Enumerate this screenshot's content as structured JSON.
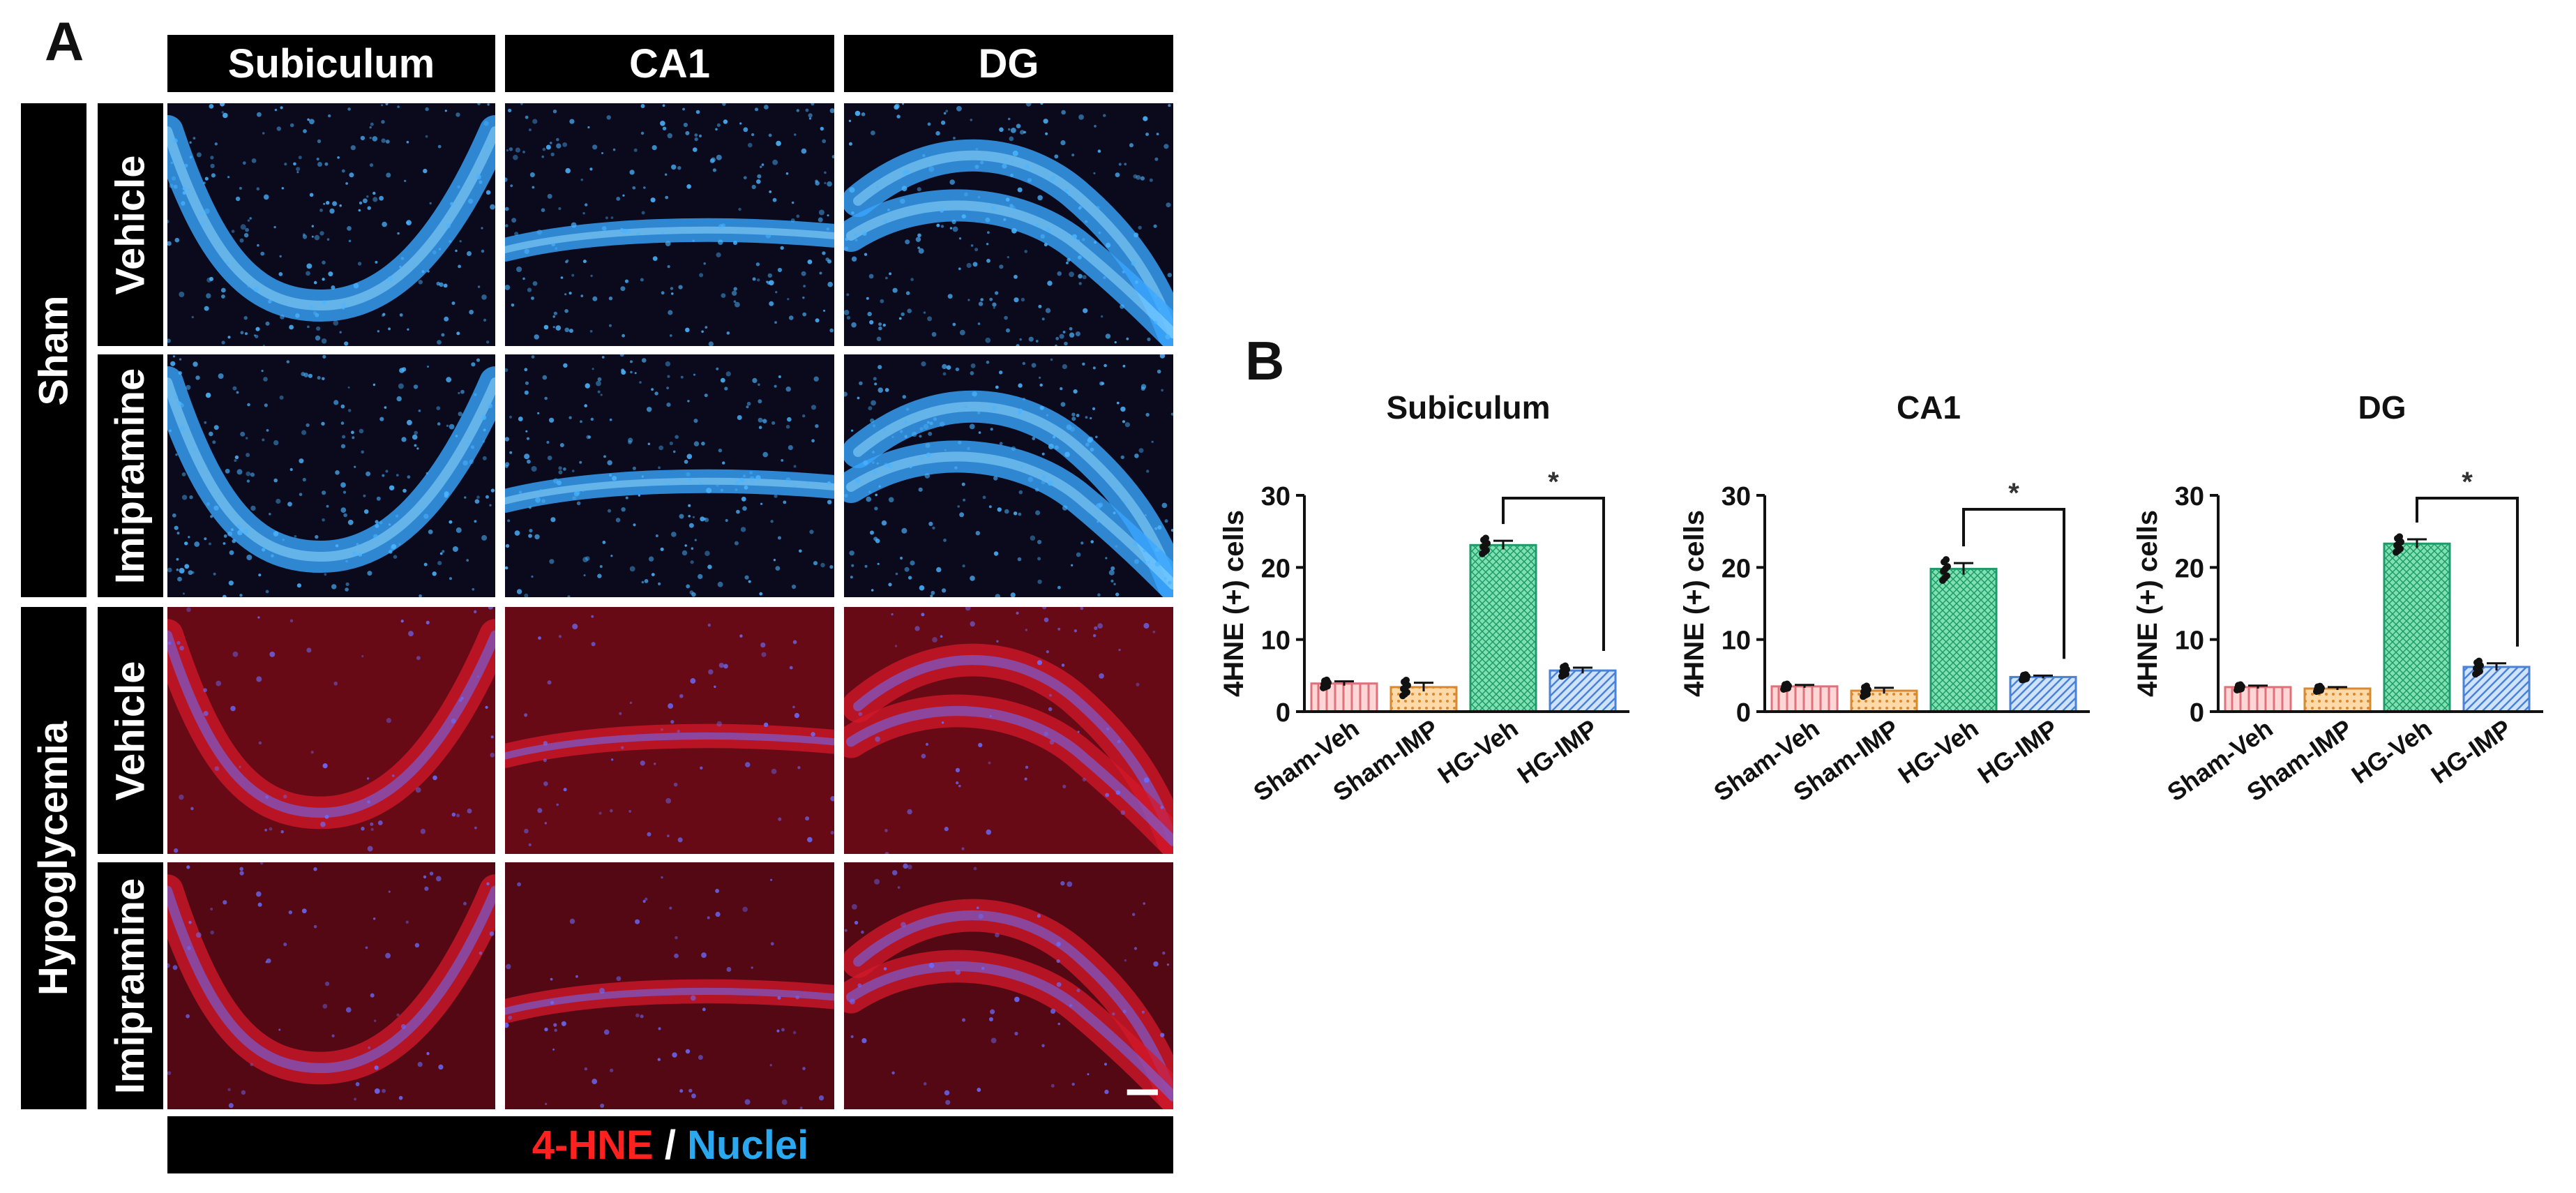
{
  "panel_a": {
    "letter": "A",
    "columns": [
      "Subiculum",
      "CA1",
      "DG"
    ],
    "groups": [
      {
        "name": "Sham",
        "rows": [
          "Vehicle",
          "Imipramine"
        ]
      },
      {
        "name": "Hypoglycemia",
        "rows": [
          "Vehicle",
          "Imipramine"
        ]
      }
    ],
    "legend": {
      "marker": "4-HNE",
      "separator": " / ",
      "stain": "Nuclei"
    },
    "colors": {
      "marker": "#ff2020",
      "stain": "#2aa8f0",
      "nuclei_glow": "#3aa6ff",
      "hne_red": "#d4182a"
    }
  },
  "panel_b": {
    "letter": "B"
  },
  "chart_data": [
    {
      "type": "bar",
      "title": "Subiculum",
      "ylabel": "4HNE (+) cells",
      "categories": [
        "Sham-Veh",
        "Sham-IMP",
        "HG-Veh",
        "HG-IMP"
      ],
      "values": [
        3.9,
        3.4,
        23.1,
        5.7
      ],
      "errors": [
        0.3,
        0.6,
        0.6,
        0.4
      ],
      "ylim": [
        0,
        30
      ],
      "yticks": [
        0,
        10,
        20,
        30
      ],
      "significance": {
        "from": "HG-Veh",
        "to": "HG-IMP",
        "label": "*"
      }
    },
    {
      "type": "bar",
      "title": "CA1",
      "ylabel": "4HNE (+) cells",
      "categories": [
        "Sham-Veh",
        "Sham-IMP",
        "HG-Veh",
        "HG-IMP"
      ],
      "values": [
        3.5,
        2.9,
        19.8,
        4.8
      ],
      "errors": [
        0.2,
        0.4,
        0.8,
        0.2
      ],
      "ylim": [
        0,
        30
      ],
      "yticks": [
        0,
        10,
        20,
        30
      ],
      "significance": {
        "from": "HG-Veh",
        "to": "HG-IMP",
        "label": "*"
      }
    },
    {
      "type": "bar",
      "title": "DG",
      "ylabel": "4HNE (+) cells",
      "categories": [
        "Sham-Veh",
        "Sham-IMP",
        "HG-Veh",
        "HG-IMP"
      ],
      "values": [
        3.4,
        3.2,
        23.3,
        6.2
      ],
      "errors": [
        0.2,
        0.2,
        0.6,
        0.5
      ],
      "ylim": [
        0,
        30
      ],
      "yticks": [
        0,
        10,
        20,
        30
      ],
      "significance": {
        "from": "HG-Veh",
        "to": "HG-IMP",
        "label": "*"
      }
    }
  ],
  "bar_colors": [
    {
      "fill": "#ffd6d6",
      "stroke": "#e0707a",
      "hatch": "vertical"
    },
    {
      "fill": "#ffd9a8",
      "stroke": "#d98a30",
      "hatch": "dots"
    },
    {
      "fill": "#7fe0b0",
      "stroke": "#1f9a6a",
      "hatch": "cross"
    },
    {
      "fill": "#cfe3ff",
      "stroke": "#4a82d6",
      "hatch": "diagonal"
    }
  ]
}
